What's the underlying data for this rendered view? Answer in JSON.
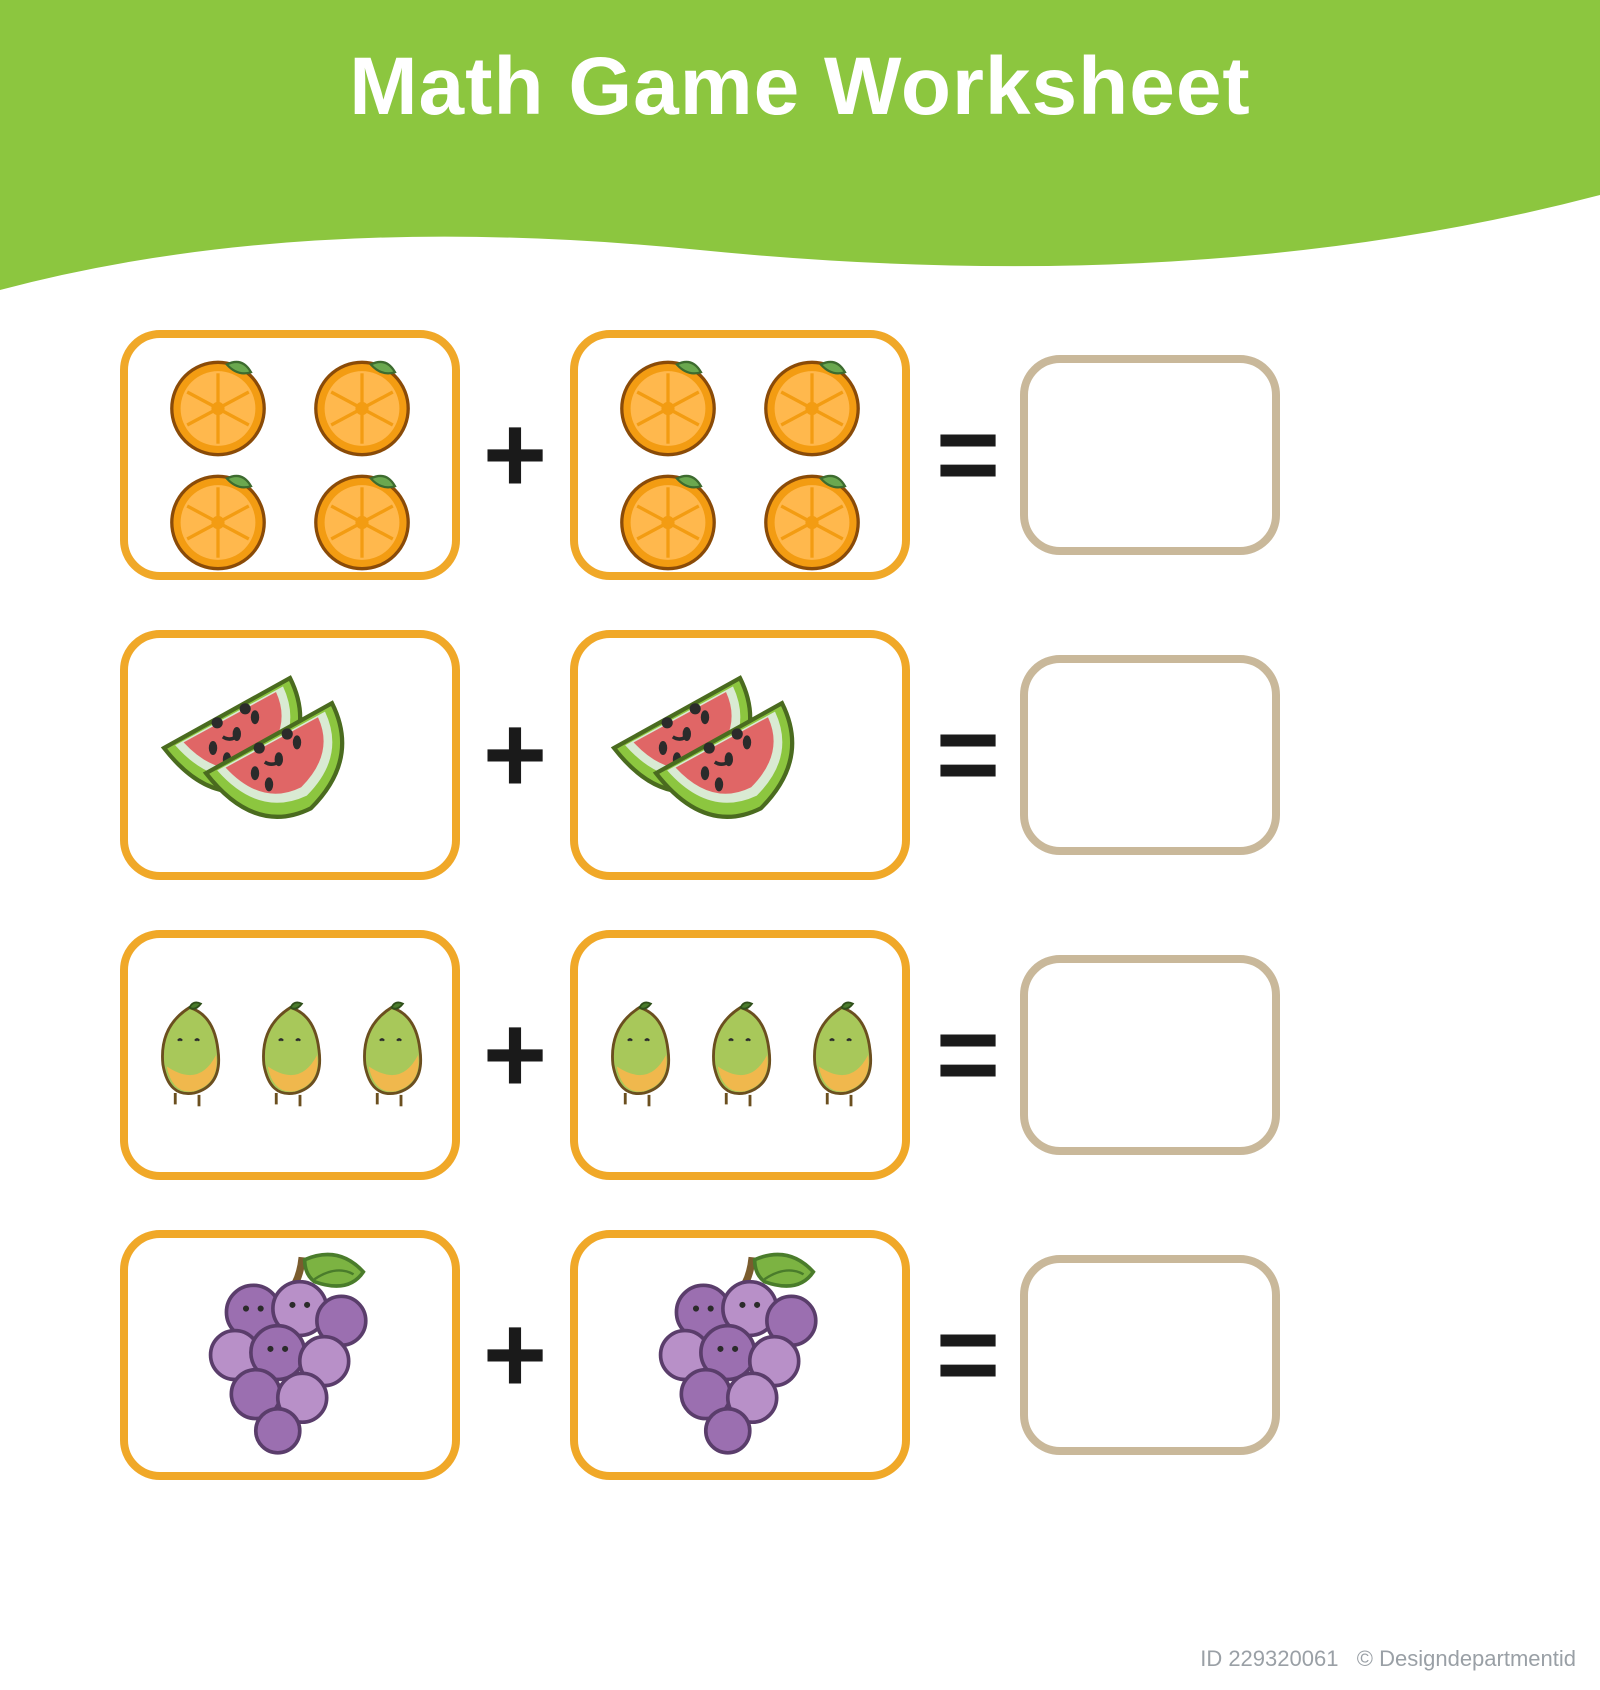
{
  "title": "Math Game Worksheet",
  "header_color": "#8cc63f",
  "header_color_dark": "#7ab52e",
  "card_border_color": "#f0a828",
  "answer_border_color": "#c9b89a",
  "operator_color": "#1a1a1a",
  "plus_symbol": "+",
  "equals_symbol": "=",
  "watermark_id": "ID 229320061",
  "watermark_author": "© Designdepartmentid",
  "rows": [
    {
      "fruit": "orange",
      "left_count": 4,
      "right_count": 4,
      "layout": "grid"
    },
    {
      "fruit": "watermelon",
      "left_count": 2,
      "right_count": 2,
      "layout": "overlap"
    },
    {
      "fruit": "mango",
      "left_count": 3,
      "right_count": 3,
      "layout": "row"
    },
    {
      "fruit": "grapes",
      "left_count": 1,
      "right_count": 1,
      "layout": "single"
    }
  ],
  "fruit_colors": {
    "orange": {
      "skin": "#f39c12",
      "flesh": "#f5a623",
      "segment": "#ffb84d",
      "leaf": "#6aa84f",
      "outline": "#8a4b08"
    },
    "watermelon": {
      "rind": "#8cc63f",
      "rind_inner": "#d9ead3",
      "flesh": "#e06666",
      "seed": "#2b2b2b",
      "outline": "#4a6b1f"
    },
    "mango": {
      "top": "#a8c85a",
      "bottom": "#f0b84d",
      "leaf": "#4a7c2b",
      "outline": "#6b4f1f"
    },
    "grapes": {
      "grape": "#9b6fb0",
      "grape_hi": "#b890c8",
      "stem": "#7a5c2e",
      "leaf": "#7cb342",
      "outline": "#5a3d6b"
    }
  }
}
